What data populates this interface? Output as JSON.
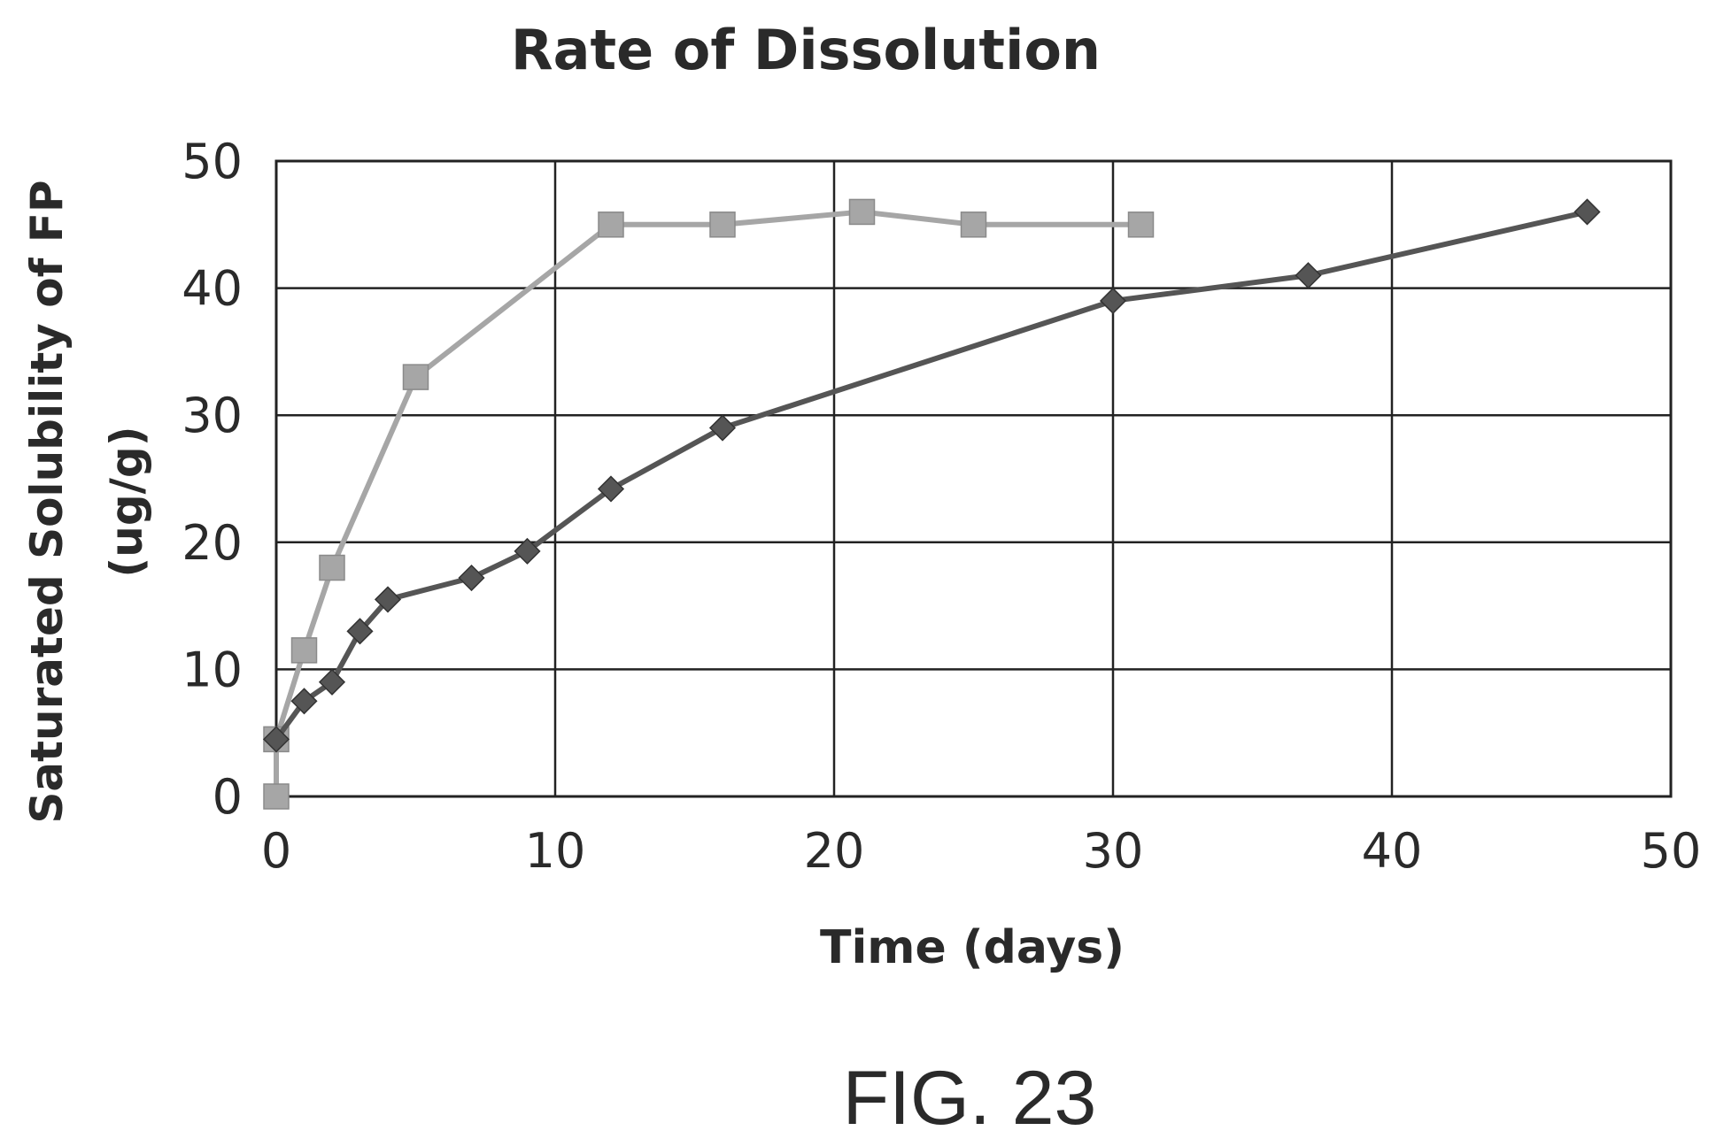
{
  "chart_data": {
    "type": "line",
    "title": "Rate of Dissolution",
    "xlabel": "Time (days)",
    "ylabel_line1": "Saturated Solubility of FP",
    "ylabel_line2": "(ug/g)",
    "xlim": [
      0,
      50
    ],
    "ylim": [
      0,
      50
    ],
    "xticks": [
      0,
      10,
      20,
      30,
      40,
      50
    ],
    "yticks": [
      0,
      10,
      20,
      30,
      40,
      50
    ],
    "grid": true,
    "series": [
      {
        "marker": "square",
        "color": "#a6a6a6",
        "points": [
          [
            0,
            0
          ],
          [
            0,
            4.5
          ],
          [
            1,
            11.5
          ],
          [
            2,
            18
          ],
          [
            5,
            33
          ],
          [
            12,
            45
          ],
          [
            16,
            45
          ],
          [
            21,
            46
          ],
          [
            25,
            45
          ],
          [
            31,
            45
          ]
        ]
      },
      {
        "marker": "diamond",
        "color": "#555555",
        "points": [
          [
            0,
            4.5
          ],
          [
            1,
            7.5
          ],
          [
            2,
            9
          ],
          [
            3,
            13
          ],
          [
            4,
            15.5
          ],
          [
            7,
            17.2
          ],
          [
            9,
            19.3
          ],
          [
            12,
            24.2
          ],
          [
            16,
            29
          ],
          [
            30,
            39
          ],
          [
            37,
            41
          ],
          [
            47,
            46
          ]
        ]
      }
    ]
  },
  "figure_label": "FIG. 23"
}
